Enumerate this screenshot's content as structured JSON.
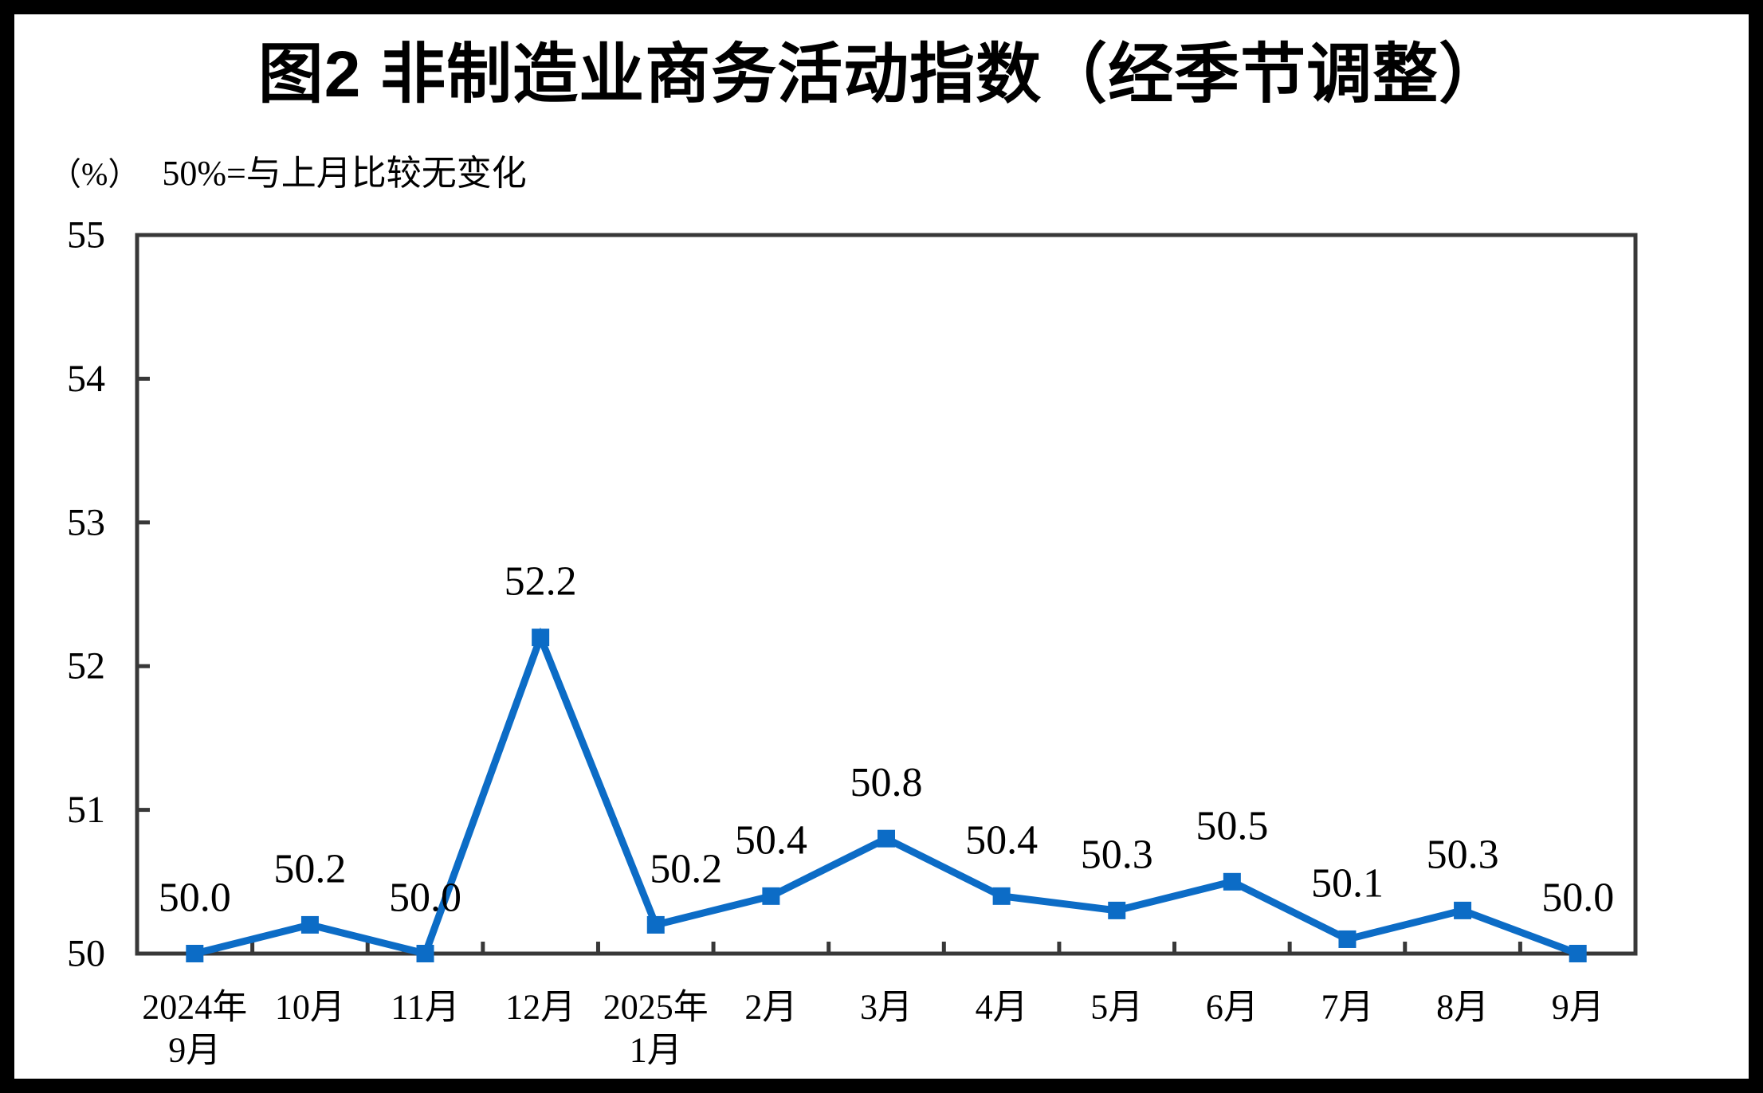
{
  "title": "图2  非制造业商务活动指数（经季节调整）",
  "unit_label": "（%）",
  "subtitle": "50%=与上月比较无变化",
  "chart_data": {
    "type": "line",
    "title": "图2 非制造业商务活动指数（经季节调整）",
    "subtitle": "（%）50%=与上月比较无变化",
    "categories": [
      [
        "2024年",
        "9月"
      ],
      [
        "10月"
      ],
      [
        "11月"
      ],
      [
        "12月"
      ],
      [
        "2025年",
        "1月"
      ],
      [
        "2月"
      ],
      [
        "3月"
      ],
      [
        "4月"
      ],
      [
        "5月"
      ],
      [
        "6月"
      ],
      [
        "7月"
      ],
      [
        "8月"
      ],
      [
        "9月"
      ]
    ],
    "values": [
      50.0,
      50.2,
      50.0,
      52.2,
      50.2,
      50.4,
      50.8,
      50.4,
      50.3,
      50.5,
      50.1,
      50.3,
      50.0
    ],
    "data_labels": [
      "50.0",
      "50.2",
      "50.0",
      "52.2",
      "50.2",
      "50.4",
      "50.8",
      "50.4",
      "50.3",
      "50.5",
      "50.1",
      "50.3",
      "50.0"
    ],
    "yticks": [
      50,
      51,
      52,
      53,
      54,
      55
    ],
    "ylim": [
      50,
      55
    ],
    "grid": false,
    "legend_position": "none",
    "marker": "square",
    "series_color": "#0c6cc6",
    "axis_color": "#383838",
    "text_color": "#000000",
    "label_dx": [
      0,
      0,
      0,
      0,
      38,
      0,
      0,
      0,
      0,
      0,
      0,
      0,
      0
    ]
  }
}
